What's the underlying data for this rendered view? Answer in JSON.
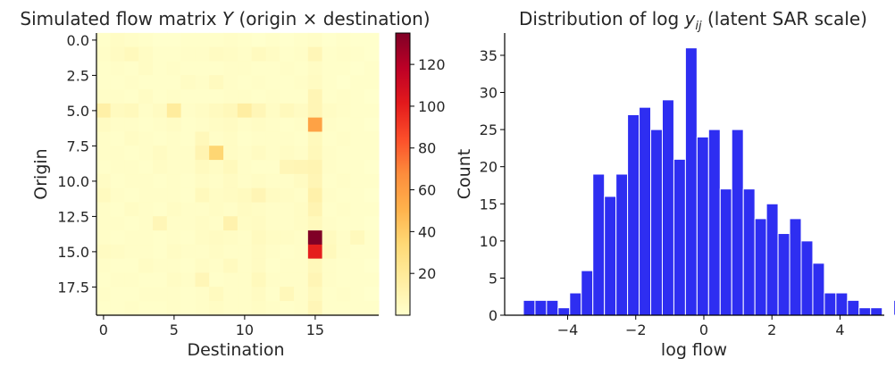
{
  "chart_data": [
    {
      "type": "heatmap",
      "title": "Simulated flow matrix Y (origin × destination)",
      "title_parts": [
        "Simulated flow matrix ",
        "Y",
        " (origin × destination)"
      ],
      "xlabel": "Destination",
      "ylabel": "Origin",
      "xticks": [
        "0",
        "5",
        "10",
        "15"
      ],
      "yticks": [
        "0.0",
        "2.5",
        "5.0",
        "7.5",
        "10.0",
        "12.5",
        "15.0",
        "17.5"
      ],
      "rows": 20,
      "cols": 20,
      "colormap": "YlOrRd",
      "colorbar": {
        "ticks": [
          "20",
          "40",
          "60",
          "80",
          "100",
          "120"
        ],
        "vmin": 0,
        "vmax": 135
      },
      "grid": false,
      "values": [
        [
          1,
          3,
          2,
          1,
          0,
          0,
          1,
          1,
          1,
          2,
          1,
          0,
          1,
          0,
          1,
          2,
          0,
          1,
          0,
          0
        ],
        [
          2,
          4,
          6,
          3,
          1,
          1,
          2,
          2,
          4,
          3,
          2,
          5,
          3,
          1,
          2,
          8,
          1,
          2,
          1,
          0
        ],
        [
          1,
          2,
          1,
          3,
          1,
          2,
          1,
          1,
          1,
          2,
          2,
          1,
          1,
          2,
          1,
          3,
          1,
          1,
          0,
          1
        ],
        [
          1,
          1,
          2,
          1,
          1,
          1,
          3,
          2,
          5,
          2,
          1,
          2,
          1,
          1,
          2,
          4,
          1,
          0,
          1,
          1
        ],
        [
          2,
          2,
          1,
          3,
          1,
          2,
          1,
          1,
          1,
          2,
          2,
          1,
          2,
          1,
          1,
          9,
          1,
          2,
          1,
          0
        ],
        [
          14,
          5,
          6,
          2,
          4,
          18,
          2,
          3,
          5,
          7,
          16,
          8,
          3,
          6,
          4,
          9,
          3,
          2,
          1,
          1
        ],
        [
          4,
          2,
          2,
          1,
          2,
          3,
          1,
          2,
          3,
          4,
          2,
          3,
          2,
          1,
          2,
          58,
          2,
          1,
          1,
          0
        ],
        [
          2,
          1,
          3,
          2,
          1,
          2,
          1,
          7,
          2,
          3,
          1,
          2,
          2,
          2,
          1,
          6,
          1,
          2,
          1,
          1
        ],
        [
          2,
          2,
          1,
          2,
          4,
          2,
          2,
          10,
          35,
          3,
          2,
          4,
          2,
          3,
          2,
          7,
          2,
          1,
          1,
          1
        ],
        [
          1,
          2,
          2,
          1,
          3,
          2,
          2,
          5,
          3,
          6,
          2,
          1,
          1,
          8,
          9,
          10,
          2,
          1,
          1,
          0
        ],
        [
          3,
          1,
          2,
          2,
          1,
          2,
          1,
          3,
          2,
          4,
          2,
          3,
          2,
          2,
          4,
          9,
          1,
          2,
          1,
          1
        ],
        [
          5,
          2,
          1,
          2,
          2,
          2,
          1,
          6,
          3,
          4,
          5,
          9,
          4,
          3,
          2,
          13,
          2,
          1,
          1,
          0
        ],
        [
          2,
          1,
          3,
          2,
          1,
          3,
          2,
          2,
          3,
          2,
          4,
          3,
          2,
          2,
          3,
          10,
          1,
          2,
          1,
          1
        ],
        [
          2,
          2,
          1,
          2,
          8,
          2,
          2,
          3,
          2,
          12,
          3,
          4,
          2,
          2,
          3,
          6,
          2,
          1,
          1,
          0
        ],
        [
          2,
          1,
          2,
          2,
          1,
          2,
          1,
          3,
          4,
          3,
          2,
          5,
          3,
          3,
          2,
          135,
          5,
          2,
          6,
          1
        ],
        [
          4,
          3,
          2,
          2,
          1,
          3,
          2,
          2,
          3,
          2,
          2,
          4,
          2,
          1,
          2,
          100,
          6,
          2,
          1,
          1
        ],
        [
          2,
          1,
          1,
          3,
          2,
          2,
          1,
          3,
          2,
          5,
          2,
          4,
          1,
          2,
          2,
          7,
          2,
          1,
          1,
          0
        ],
        [
          1,
          2,
          2,
          1,
          1,
          3,
          2,
          8,
          1,
          2,
          2,
          6,
          2,
          2,
          2,
          9,
          2,
          1,
          1,
          1
        ],
        [
          2,
          1,
          1,
          2,
          2,
          2,
          1,
          2,
          5,
          2,
          2,
          4,
          1,
          7,
          2,
          6,
          1,
          2,
          1,
          0
        ],
        [
          1,
          1,
          2,
          1,
          1,
          2,
          1,
          2,
          3,
          2,
          2,
          3,
          2,
          1,
          2,
          8,
          1,
          1,
          1,
          1
        ]
      ]
    },
    {
      "type": "bar",
      "subtype": "histogram",
      "title": "Distribution of log y_ij (latent SAR scale)",
      "title_parts": [
        "Distribution of ",
        "log",
        " y",
        "ij",
        " (latent SAR scale)"
      ],
      "xlabel": "log flow",
      "ylabel": "Count",
      "xticks": [
        "−4",
        "−2",
        "0",
        "2",
        "4"
      ],
      "yticks": [
        "0",
        "5",
        "10",
        "15",
        "20",
        "25",
        "30",
        "35"
      ],
      "xlim": [
        -5.85,
        5.3
      ],
      "ylim": [
        0,
        38
      ],
      "bin_start": -5.3,
      "bin_width": 0.34,
      "counts": [
        2,
        2,
        2,
        1,
        3,
        6,
        19,
        16,
        19,
        27,
        28,
        25,
        29,
        21,
        36,
        24,
        25,
        17,
        25,
        17,
        13,
        15,
        11,
        13,
        10,
        7,
        3,
        3,
        2,
        1,
        1,
        0,
        2
      ],
      "color": "#0000ee",
      "grid": false
    }
  ]
}
